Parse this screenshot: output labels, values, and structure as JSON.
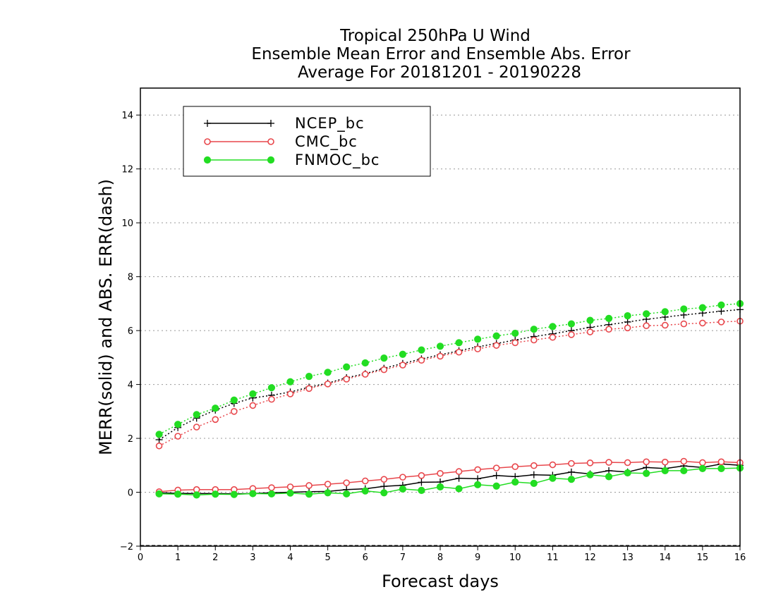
{
  "chart_data": {
    "type": "line",
    "title_lines": [
      "Tropical 250hPa U Wind",
      "Ensemble Mean Error and Ensemble Abs. Error",
      "Average For 20181201 - 20190228"
    ],
    "xlabel": "Forecast days",
    "ylabel": "MERR(solid) and ABS. ERR(dash)",
    "xlim": [
      0,
      16
    ],
    "ylim": [
      -2,
      15
    ],
    "xticks": [
      0,
      1,
      2,
      3,
      4,
      5,
      6,
      7,
      8,
      9,
      10,
      11,
      12,
      13,
      14,
      15,
      16
    ],
    "yticks": [
      -2,
      0,
      2,
      4,
      6,
      8,
      10,
      12,
      14
    ],
    "grid": "horizontal dotted",
    "legend_position": "top-left",
    "x": [
      0.5,
      1,
      1.5,
      2,
      2.5,
      3,
      3.5,
      4,
      4.5,
      5,
      5.5,
      6,
      6.5,
      7,
      7.5,
      8,
      8.5,
      9,
      9.5,
      10,
      10.5,
      11,
      11.5,
      12,
      12.5,
      13,
      13.5,
      14,
      14.5,
      15,
      15.5,
      16
    ],
    "series": [
      {
        "name": "NCEP_bc",
        "color": "#000000",
        "marker": "plus",
        "merr": [
          -0.02,
          -0.04,
          -0.05,
          -0.05,
          -0.06,
          -0.05,
          -0.02,
          0.0,
          0.02,
          0.03,
          0.1,
          0.13,
          0.22,
          0.26,
          0.37,
          0.38,
          0.52,
          0.5,
          0.62,
          0.58,
          0.65,
          0.63,
          0.75,
          0.68,
          0.8,
          0.75,
          0.92,
          0.88,
          0.98,
          0.92,
          1.05,
          1.0
        ],
        "abs_err": [
          1.95,
          2.4,
          2.75,
          3.05,
          3.3,
          3.5,
          3.6,
          3.72,
          3.9,
          4.05,
          4.25,
          4.4,
          4.6,
          4.78,
          4.95,
          5.1,
          5.25,
          5.4,
          5.52,
          5.65,
          5.78,
          5.88,
          6.0,
          6.12,
          6.22,
          6.32,
          6.42,
          6.5,
          6.58,
          6.65,
          6.72,
          6.78
        ]
      },
      {
        "name": "CMC_bc",
        "color": "#e8474c",
        "marker": "open-circle",
        "merr": [
          0.02,
          0.08,
          0.1,
          0.1,
          0.1,
          0.14,
          0.17,
          0.2,
          0.25,
          0.3,
          0.35,
          0.42,
          0.48,
          0.56,
          0.62,
          0.7,
          0.77,
          0.84,
          0.9,
          0.95,
          0.99,
          1.02,
          1.07,
          1.09,
          1.11,
          1.1,
          1.13,
          1.12,
          1.15,
          1.1,
          1.13,
          1.1
        ],
        "abs_err": [
          1.72,
          2.08,
          2.42,
          2.7,
          3.0,
          3.22,
          3.45,
          3.65,
          3.85,
          4.02,
          4.2,
          4.38,
          4.55,
          4.72,
          4.9,
          5.05,
          5.2,
          5.32,
          5.45,
          5.55,
          5.65,
          5.75,
          5.85,
          5.95,
          6.05,
          6.1,
          6.18,
          6.2,
          6.25,
          6.28,
          6.32,
          6.35
        ]
      },
      {
        "name": "FNMOC_bc",
        "color": "#22dd22",
        "marker": "filled-circle",
        "merr": [
          -0.06,
          -0.07,
          -0.1,
          -0.07,
          -0.08,
          -0.05,
          -0.06,
          -0.03,
          -0.07,
          -0.02,
          -0.06,
          0.05,
          -0.02,
          0.12,
          0.07,
          0.2,
          0.13,
          0.28,
          0.23,
          0.38,
          0.33,
          0.52,
          0.48,
          0.65,
          0.58,
          0.72,
          0.7,
          0.8,
          0.8,
          0.88,
          0.88,
          0.9
        ],
        "abs_err": [
          2.15,
          2.52,
          2.88,
          3.12,
          3.42,
          3.65,
          3.88,
          4.1,
          4.3,
          4.45,
          4.65,
          4.8,
          4.98,
          5.12,
          5.28,
          5.42,
          5.55,
          5.68,
          5.8,
          5.9,
          6.05,
          6.15,
          6.25,
          6.38,
          6.45,
          6.55,
          6.62,
          6.7,
          6.8,
          6.85,
          6.95,
          7.0
        ]
      }
    ]
  }
}
